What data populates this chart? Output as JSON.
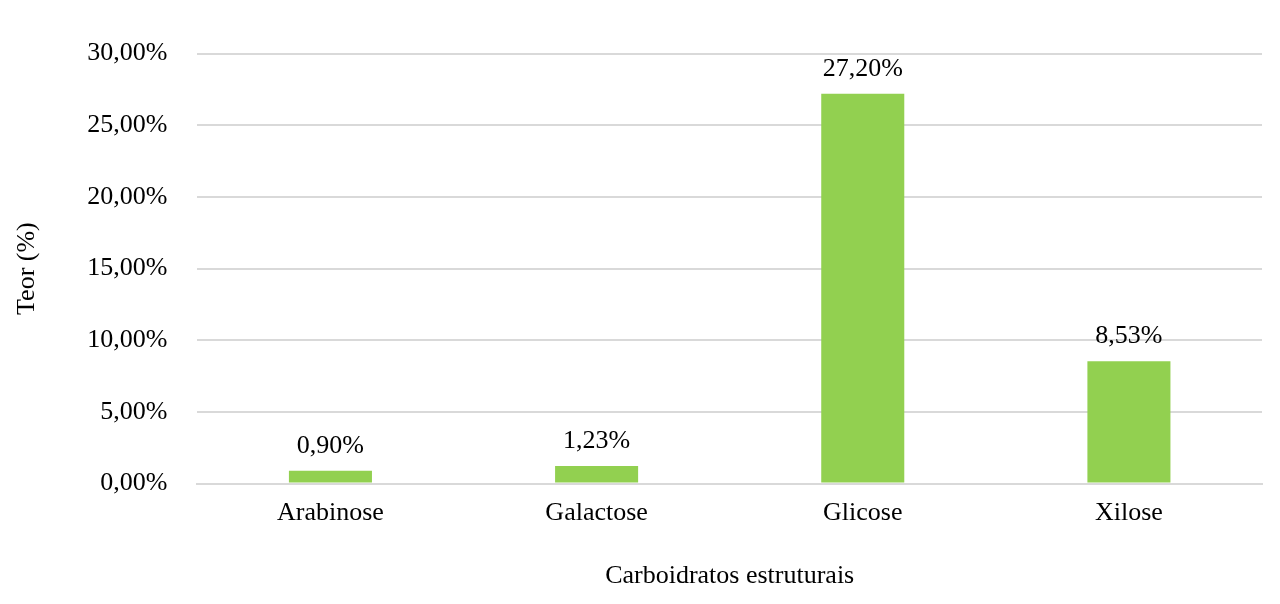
{
  "chart_data": {
    "type": "bar",
    "xlabel": "Carboidratos estruturais",
    "ylabel": "Teor (%)",
    "categories": [
      "Arabinose",
      "Galactose",
      "Glicose",
      "Xilose"
    ],
    "values": [
      0.9,
      1.23,
      27.2,
      8.53
    ],
    "color": "#92d050",
    "value_labels": [
      "0,90%",
      "1,23%",
      "27,20%",
      "8,53%"
    ],
    "ylim": [
      0,
      30
    ],
    "yticks": [
      {
        "value": 0,
        "label": "0,00%"
      },
      {
        "value": 5,
        "label": "5,00%"
      },
      {
        "value": 10,
        "label": "10,00%"
      },
      {
        "value": 15,
        "label": "15,00%"
      },
      {
        "value": 20,
        "label": "20,00%"
      },
      {
        "value": 25,
        "label": "25,00%"
      },
      {
        "value": 30,
        "label": "30,00%"
      }
    ],
    "grid": "y",
    "legend": false
  }
}
